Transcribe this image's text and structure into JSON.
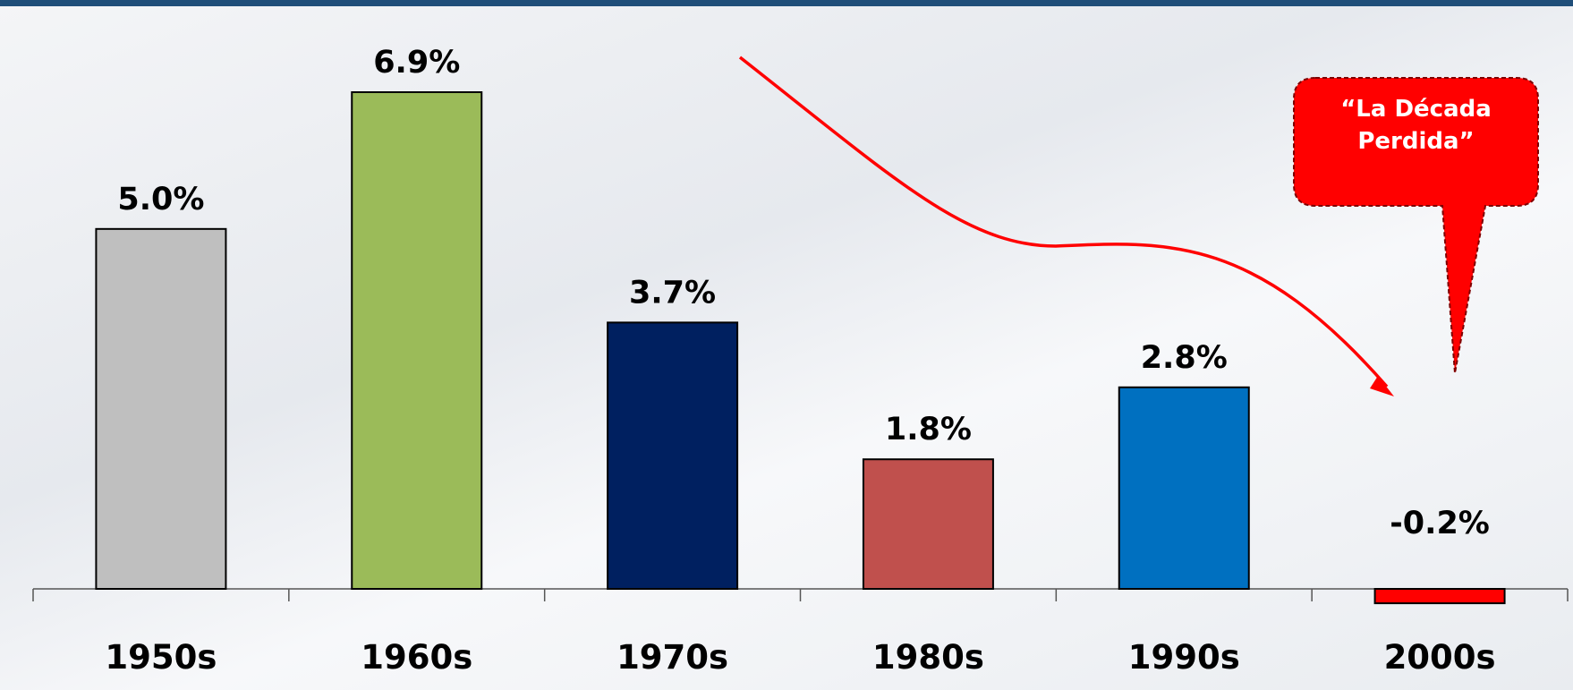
{
  "chart_data": {
    "type": "bar",
    "categories": [
      "1950s",
      "1960s",
      "1970s",
      "1980s",
      "1990s",
      "2000s"
    ],
    "values": [
      5.0,
      6.9,
      3.7,
      1.8,
      2.8,
      -0.2
    ],
    "value_labels": [
      "5.0%",
      "6.9%",
      "3.7%",
      "1.8%",
      "2.8%",
      "-0.2%"
    ],
    "colors": [
      "#bfbfbf",
      "#9bbb59",
      "#002060",
      "#c0504d",
      "#0070c0",
      "#ff0000"
    ],
    "annotation": "“La Década Perdida”"
  }
}
